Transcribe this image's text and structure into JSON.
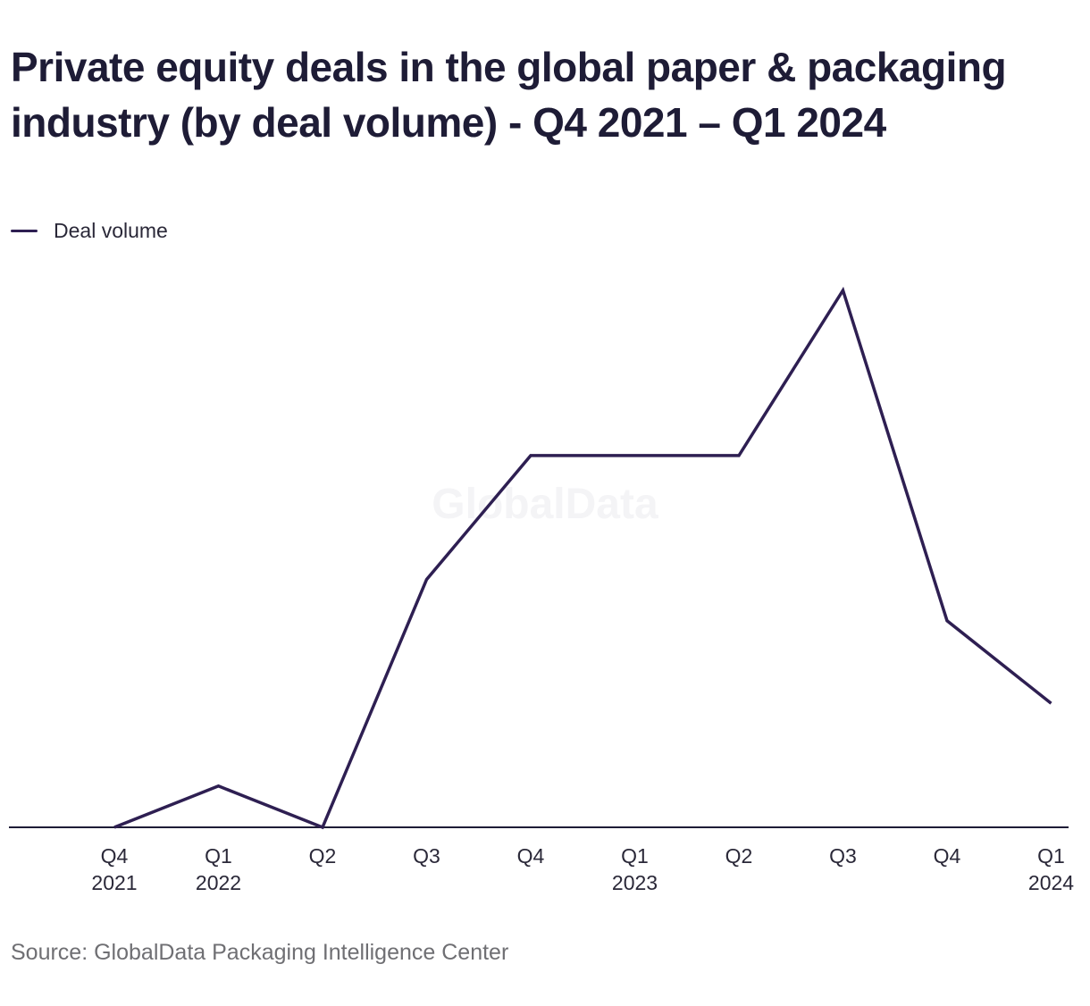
{
  "title": "Private equity deals in the global paper & packaging industry (by deal volume) - Q4 2021 – Q1 2024",
  "source": "Source: GlobalData Packaging Intelligence Center",
  "watermark": "GlobalData",
  "colors": {
    "line": "#2e1f52",
    "axis": "#1e1c36",
    "watermark": "#f4f4f6"
  },
  "chart_data": {
    "type": "line",
    "title": "Private equity deals in the global paper & packaging industry (by deal volume) - Q4 2021 – Q1 2024",
    "legend_position": "top-left",
    "grid": false,
    "x": [
      {
        "quarter": "Q4",
        "year": "2021"
      },
      {
        "quarter": "Q1",
        "year": "2022"
      },
      {
        "quarter": "Q2",
        "year": ""
      },
      {
        "quarter": "Q3",
        "year": ""
      },
      {
        "quarter": "Q4",
        "year": ""
      },
      {
        "quarter": "Q1",
        "year": "2023"
      },
      {
        "quarter": "Q2",
        "year": ""
      },
      {
        "quarter": "Q3",
        "year": ""
      },
      {
        "quarter": "Q4",
        "year": ""
      },
      {
        "quarter": "Q1",
        "year": "2024"
      }
    ],
    "series": [
      {
        "name": "Deal volume",
        "values": [
          0,
          1,
          0,
          6,
          9,
          9,
          9,
          13,
          5,
          3
        ]
      }
    ],
    "ylim": [
      0,
      13
    ]
  }
}
